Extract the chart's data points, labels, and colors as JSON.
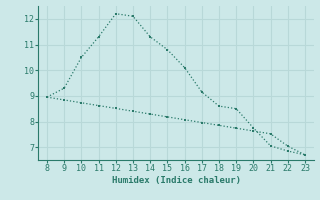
{
  "line1_x": [
    8,
    9,
    10,
    11,
    12,
    13,
    14,
    15,
    16,
    17,
    18,
    19,
    20,
    21,
    22,
    23
  ],
  "line1_y": [
    8.95,
    9.3,
    10.5,
    11.3,
    12.2,
    12.1,
    11.3,
    10.8,
    10.1,
    9.15,
    8.6,
    8.5,
    7.75,
    7.05,
    6.85,
    6.7
  ],
  "line2_x": [
    8,
    9,
    10,
    11,
    12,
    13,
    14,
    15,
    16,
    17,
    18,
    19,
    20,
    21,
    22,
    23
  ],
  "line2_y": [
    8.95,
    8.84,
    8.73,
    8.62,
    8.51,
    8.4,
    8.29,
    8.18,
    8.07,
    7.96,
    7.85,
    7.74,
    7.63,
    7.52,
    7.04,
    6.7
  ],
  "line_color": "#2a7a6a",
  "bg_color": "#cce8e8",
  "grid_color": "#b8d8d8",
  "xlabel": "Humidex (Indice chaleur)",
  "xlim": [
    7.5,
    23.5
  ],
  "ylim": [
    6.5,
    12.5
  ],
  "xticks": [
    8,
    9,
    10,
    11,
    12,
    13,
    14,
    15,
    16,
    17,
    18,
    19,
    20,
    21,
    22,
    23
  ],
  "yticks": [
    7,
    8,
    9,
    10,
    11,
    12
  ],
  "label_fontsize": 6.5,
  "tick_fontsize": 6.0
}
